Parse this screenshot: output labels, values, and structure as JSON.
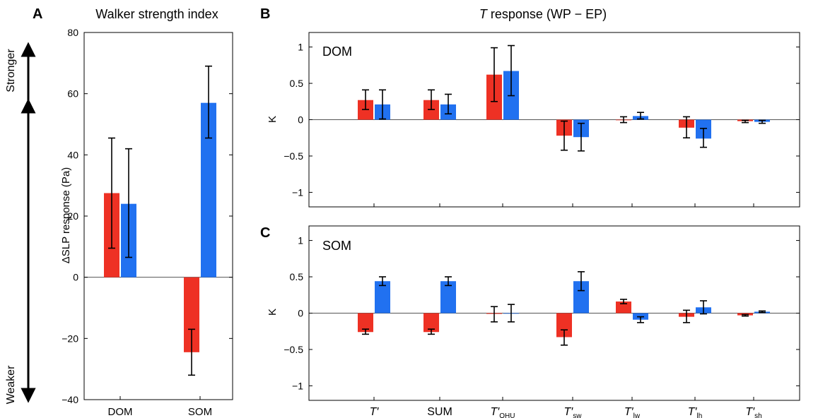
{
  "colors": {
    "red": "#ee3124",
    "blue": "#2171f0",
    "axis": "#000000",
    "zero": "#555555"
  },
  "panel_labels": [
    "A",
    "B",
    "C"
  ],
  "arrow_labels": {
    "up": "Stronger",
    "down": "Weaker"
  },
  "b_title": {
    "italic": "T",
    "rest": " response (WP − EP)"
  },
  "chart_data": [
    {
      "id": "A",
      "type": "bar",
      "title": "Walker strength index",
      "ylabel": "ΔSLP response (Pa)",
      "ylim": [
        -40,
        80
      ],
      "yticks": [
        "80",
        "60",
        "40",
        "20",
        "0",
        "−20",
        "−40"
      ],
      "ytick_values": [
        80,
        60,
        40,
        20,
        0,
        -20,
        -40
      ],
      "categories": [
        "DOM",
        "SOM"
      ],
      "series": [
        {
          "color": "red",
          "values": [
            27.5,
            -24.5
          ],
          "err_low": [
            9.5,
            -32
          ],
          "err_high": [
            45.5,
            -17
          ]
        },
        {
          "color": "blue",
          "values": [
            24,
            57
          ],
          "err_low": [
            6.5,
            45.5
          ],
          "err_high": [
            42,
            69
          ]
        }
      ],
      "grid": false
    },
    {
      "id": "B",
      "type": "bar",
      "label": "DOM",
      "ylabel": "K",
      "ylim": [
        -1.2,
        1.2
      ],
      "yticks": [
        "1",
        "0.5",
        "0",
        "−0.5",
        "−1"
      ],
      "ytick_values": [
        1,
        0.5,
        0,
        -0.5,
        -1
      ],
      "categories": [
        "T'",
        "SUM",
        "T'OHU",
        "T'sw",
        "T'lw",
        "T'lh",
        "T'sh"
      ],
      "series": [
        {
          "color": "red",
          "values": [
            0.27,
            0.27,
            0.62,
            -0.22,
            0.0,
            -0.11,
            -0.02
          ],
          "err_low": [
            0.14,
            0.14,
            0.25,
            -0.42,
            -0.04,
            -0.25,
            -0.04
          ],
          "err_high": [
            0.41,
            0.41,
            0.99,
            -0.02,
            0.04,
            0.04,
            -0.01
          ]
        },
        {
          "color": "blue",
          "values": [
            0.21,
            0.21,
            0.67,
            -0.24,
            0.05,
            -0.26,
            -0.03
          ],
          "err_low": [
            0.01,
            0.08,
            0.33,
            -0.43,
            0.01,
            -0.38,
            -0.05
          ],
          "err_high": [
            0.41,
            0.35,
            1.02,
            -0.05,
            0.1,
            -0.12,
            -0.01
          ]
        }
      ],
      "grid": false
    },
    {
      "id": "C",
      "type": "bar",
      "label": "SOM",
      "ylabel": "K",
      "ylim": [
        -1.2,
        1.2
      ],
      "yticks": [
        "1",
        "0.5",
        "0",
        "−0.5",
        "−1"
      ],
      "ytick_values": [
        1,
        0.5,
        0,
        -0.5,
        -1
      ],
      "categories": [
        "T'",
        "SUM",
        "T'OHU",
        "T'sw",
        "T'lw",
        "T'lh",
        "T'sh"
      ],
      "series": [
        {
          "color": "red",
          "values": [
            -0.26,
            -0.26,
            -0.01,
            -0.33,
            0.16,
            -0.05,
            -0.03
          ],
          "err_low": [
            -0.29,
            -0.29,
            -0.12,
            -0.44,
            0.13,
            -0.13,
            -0.04
          ],
          "err_high": [
            -0.22,
            -0.22,
            0.09,
            -0.23,
            0.19,
            0.04,
            -0.02
          ]
        },
        {
          "color": "blue",
          "values": [
            0.44,
            0.44,
            0.0,
            0.44,
            -0.09,
            0.08,
            0.02
          ],
          "err_low": [
            0.38,
            0.38,
            -0.12,
            0.31,
            -0.13,
            -0.01,
            0.01
          ],
          "err_high": [
            0.5,
            0.5,
            0.12,
            0.57,
            -0.05,
            0.17,
            0.03
          ]
        }
      ],
      "grid": false
    }
  ],
  "x_tick_labels": [
    {
      "main": "T′",
      "sub": "",
      "italic": true
    },
    {
      "main": "SUM",
      "sub": "",
      "italic": false
    },
    {
      "main": "T′",
      "sub": "OHU",
      "italic": true
    },
    {
      "main": "T′",
      "sub": "sw",
      "italic": true
    },
    {
      "main": "T′",
      "sub": "lw",
      "italic": true
    },
    {
      "main": "T′",
      "sub": "lh",
      "italic": true
    },
    {
      "main": "T′",
      "sub": "sh",
      "italic": true
    }
  ]
}
